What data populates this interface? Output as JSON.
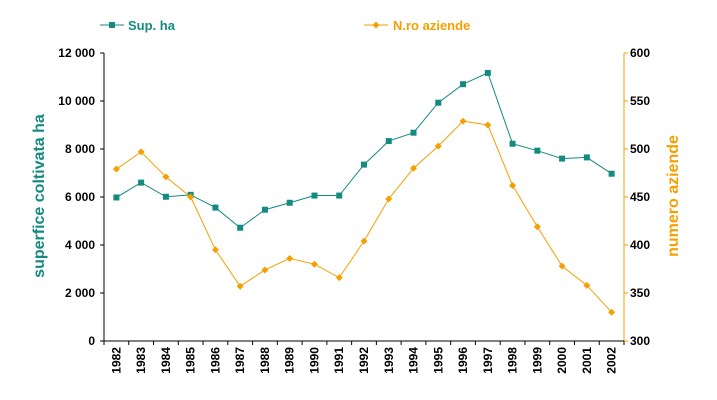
{
  "chart_data": {
    "type": "line",
    "x_label_title": "",
    "categories": [
      "1982",
      "1983",
      "1984",
      "1985",
      "1986",
      "1987",
      "1988",
      "1989",
      "1990",
      "1991",
      "1992",
      "1993",
      "1994",
      "1995",
      "1996",
      "1997",
      "1998",
      "1999",
      "2000",
      "2001",
      "2002"
    ],
    "series": [
      {
        "name": "Sup. ha",
        "axis": "left",
        "color": "#138b80",
        "marker": "square",
        "values": [
          5980,
          6600,
          6010,
          6090,
          5560,
          4720,
          5470,
          5760,
          6060,
          6060,
          7350,
          8330,
          8680,
          9930,
          10700,
          11170,
          8220,
          7930,
          7600,
          7650,
          6970
        ]
      },
      {
        "name": "N.ro aziende",
        "axis": "right",
        "color": "#f5a000",
        "marker": "diamond",
        "values": [
          479,
          497,
          471,
          450,
          395,
          357,
          374,
          386,
          380,
          366,
          404,
          448,
          480,
          503,
          529,
          525,
          462,
          419,
          378,
          358,
          330
        ]
      }
    ],
    "left_axis": {
      "label": "superfice coltivata ha",
      "ylim": [
        0,
        12000
      ],
      "ticks": [
        {
          "value": 0,
          "label": "0"
        },
        {
          "value": 2000,
          "label": "2 000"
        },
        {
          "value": 4000,
          "label": "4 000"
        },
        {
          "value": 6000,
          "label": "6 000"
        },
        {
          "value": 8000,
          "label": "8 000"
        },
        {
          "value": 10000,
          "label": "10 000"
        },
        {
          "value": 12000,
          "label": "12 000"
        }
      ]
    },
    "right_axis": {
      "label": "numero aziende",
      "ylim": [
        300,
        600
      ],
      "ticks": [
        {
          "value": 300,
          "label": "300"
        },
        {
          "value": 350,
          "label": "350"
        },
        {
          "value": 400,
          "label": "400"
        },
        {
          "value": 450,
          "label": "450"
        },
        {
          "value": 500,
          "label": "500"
        },
        {
          "value": 550,
          "label": "550"
        },
        {
          "value": 600,
          "label": "600"
        }
      ]
    },
    "grid": false,
    "legend_position": "top"
  }
}
